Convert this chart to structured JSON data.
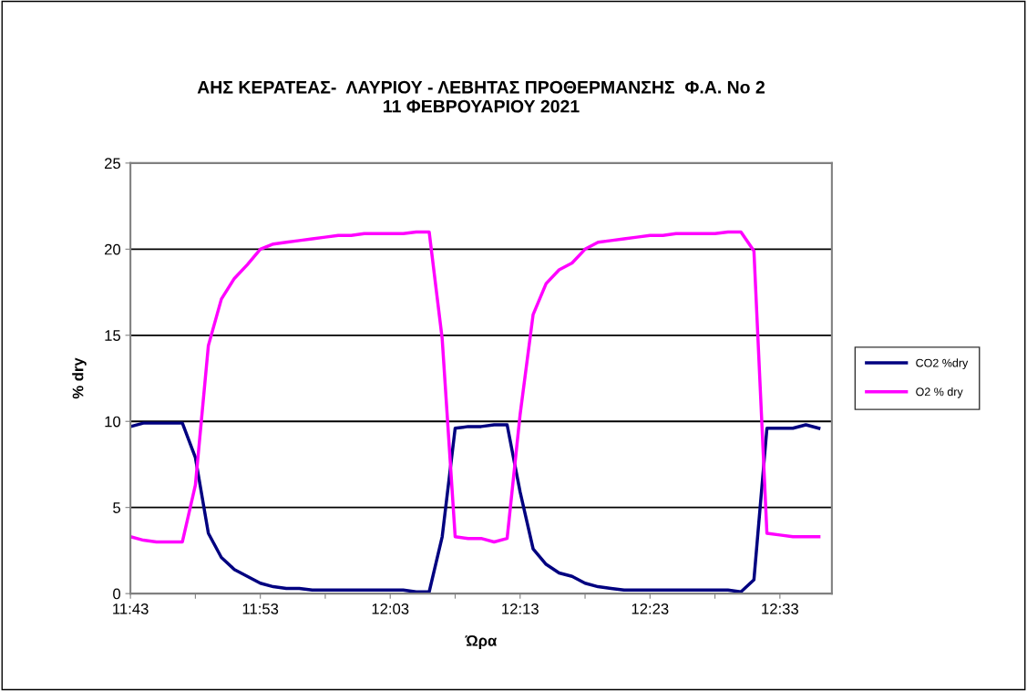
{
  "chart_data": {
    "type": "line",
    "title": "ΑΗΣ ΚΕΡΑΤΕΑΣ-  ΛΑΥΡΙΟΥ - ΛΕΒΗΤΑΣ ΠΡΟΘΕΡΜΑΝΣΗΣ  Φ.Α. Νο 2\n11 ΦΕΒΡΟΥΑΡΙΟΥ 2021",
    "xlabel": "Ώρα",
    "ylabel": "% dry",
    "x": [
      "2021-02-11T11:43",
      "2021-02-11T11:44",
      "2021-02-11T11:45",
      "2021-02-11T11:46",
      "2021-02-11T11:47",
      "2021-02-11T11:48",
      "2021-02-11T11:49",
      "2021-02-11T11:50",
      "2021-02-11T11:51",
      "2021-02-11T11:52",
      "2021-02-11T11:53",
      "2021-02-11T11:54",
      "2021-02-11T11:55",
      "2021-02-11T11:56",
      "2021-02-11T11:57",
      "2021-02-11T11:58",
      "2021-02-11T11:59",
      "2021-02-11T12:00",
      "2021-02-11T12:01",
      "2021-02-11T12:02",
      "2021-02-11T12:03",
      "2021-02-11T12:04",
      "2021-02-11T12:05",
      "2021-02-11T12:06",
      "2021-02-11T12:07",
      "2021-02-11T12:08",
      "2021-02-11T12:09",
      "2021-02-11T12:10",
      "2021-02-11T12:11",
      "2021-02-11T12:12",
      "2021-02-11T12:13",
      "2021-02-11T12:14",
      "2021-02-11T12:15",
      "2021-02-11T12:16",
      "2021-02-11T12:17",
      "2021-02-11T12:18",
      "2021-02-11T12:19",
      "2021-02-11T12:20",
      "2021-02-11T12:21",
      "2021-02-11T12:22",
      "2021-02-11T12:23",
      "2021-02-11T12:24",
      "2021-02-11T12:25",
      "2021-02-11T12:26",
      "2021-02-11T12:27",
      "2021-02-11T12:28",
      "2021-02-11T12:29",
      "2021-02-11T12:30",
      "2021-02-11T12:31",
      "2021-02-11T12:32",
      "2021-02-11T12:33",
      "2021-02-11T12:34",
      "2021-02-11T12:35",
      "2021-02-11T12:36"
    ],
    "series": [
      {
        "name": "CO2 %dry",
        "color": "#000080",
        "values": [
          9.7,
          9.9,
          9.9,
          9.9,
          9.9,
          7.9,
          3.5,
          2.1,
          1.4,
          1.0,
          0.6,
          0.4,
          0.3,
          0.3,
          0.2,
          0.2,
          0.2,
          0.2,
          0.2,
          0.2,
          0.2,
          0.2,
          0.1,
          0.1,
          3.3,
          9.6,
          9.7,
          9.7,
          9.8,
          9.8,
          5.9,
          2.6,
          1.7,
          1.2,
          1.0,
          0.6,
          0.4,
          0.3,
          0.2,
          0.2,
          0.2,
          0.2,
          0.2,
          0.2,
          0.2,
          0.2,
          0.2,
          0.1,
          0.8,
          9.6,
          9.6,
          9.6,
          9.8,
          9.6
        ]
      },
      {
        "name": "O2 % dry",
        "color": "#ff00ff",
        "values": [
          3.3,
          3.1,
          3.0,
          3.0,
          3.0,
          6.3,
          14.4,
          17.1,
          18.3,
          19.1,
          20.0,
          20.3,
          20.4,
          20.5,
          20.6,
          20.7,
          20.8,
          20.8,
          20.9,
          20.9,
          20.9,
          20.9,
          21.0,
          21.0,
          14.8,
          3.3,
          3.2,
          3.2,
          3.0,
          3.2,
          10.4,
          16.2,
          18.0,
          18.8,
          19.2,
          20.0,
          20.4,
          20.5,
          20.6,
          20.7,
          20.8,
          20.8,
          20.9,
          20.9,
          20.9,
          20.9,
          21.0,
          21.0,
          19.9,
          3.5,
          3.4,
          3.3,
          3.3,
          3.3
        ]
      }
    ],
    "xlim": [
      "2021-02-11T11:43",
      "2021-02-11T12:37"
    ],
    "xticks": [
      {
        "value": "2021-02-11T11:43",
        "label": "11:43"
      },
      {
        "value": "2021-02-11T11:48",
        "label": null
      },
      {
        "value": "2021-02-11T11:53",
        "label": "11:53"
      },
      {
        "value": "2021-02-11T11:58",
        "label": null
      },
      {
        "value": "2021-02-11T12:03",
        "label": "12:03"
      },
      {
        "value": "2021-02-11T12:08",
        "label": null
      },
      {
        "value": "2021-02-11T12:13",
        "label": "12:13"
      },
      {
        "value": "2021-02-11T12:18",
        "label": null
      },
      {
        "value": "2021-02-11T12:23",
        "label": "12:23"
      },
      {
        "value": "2021-02-11T12:28",
        "label": null
      },
      {
        "value": "2021-02-11T12:33",
        "label": "12:33"
      }
    ],
    "ylim": [
      0,
      25
    ],
    "yticks": [
      0,
      5,
      10,
      15,
      20,
      25
    ],
    "grid": "y",
    "legend": "right",
    "marker": "none",
    "line_style": "solid"
  }
}
